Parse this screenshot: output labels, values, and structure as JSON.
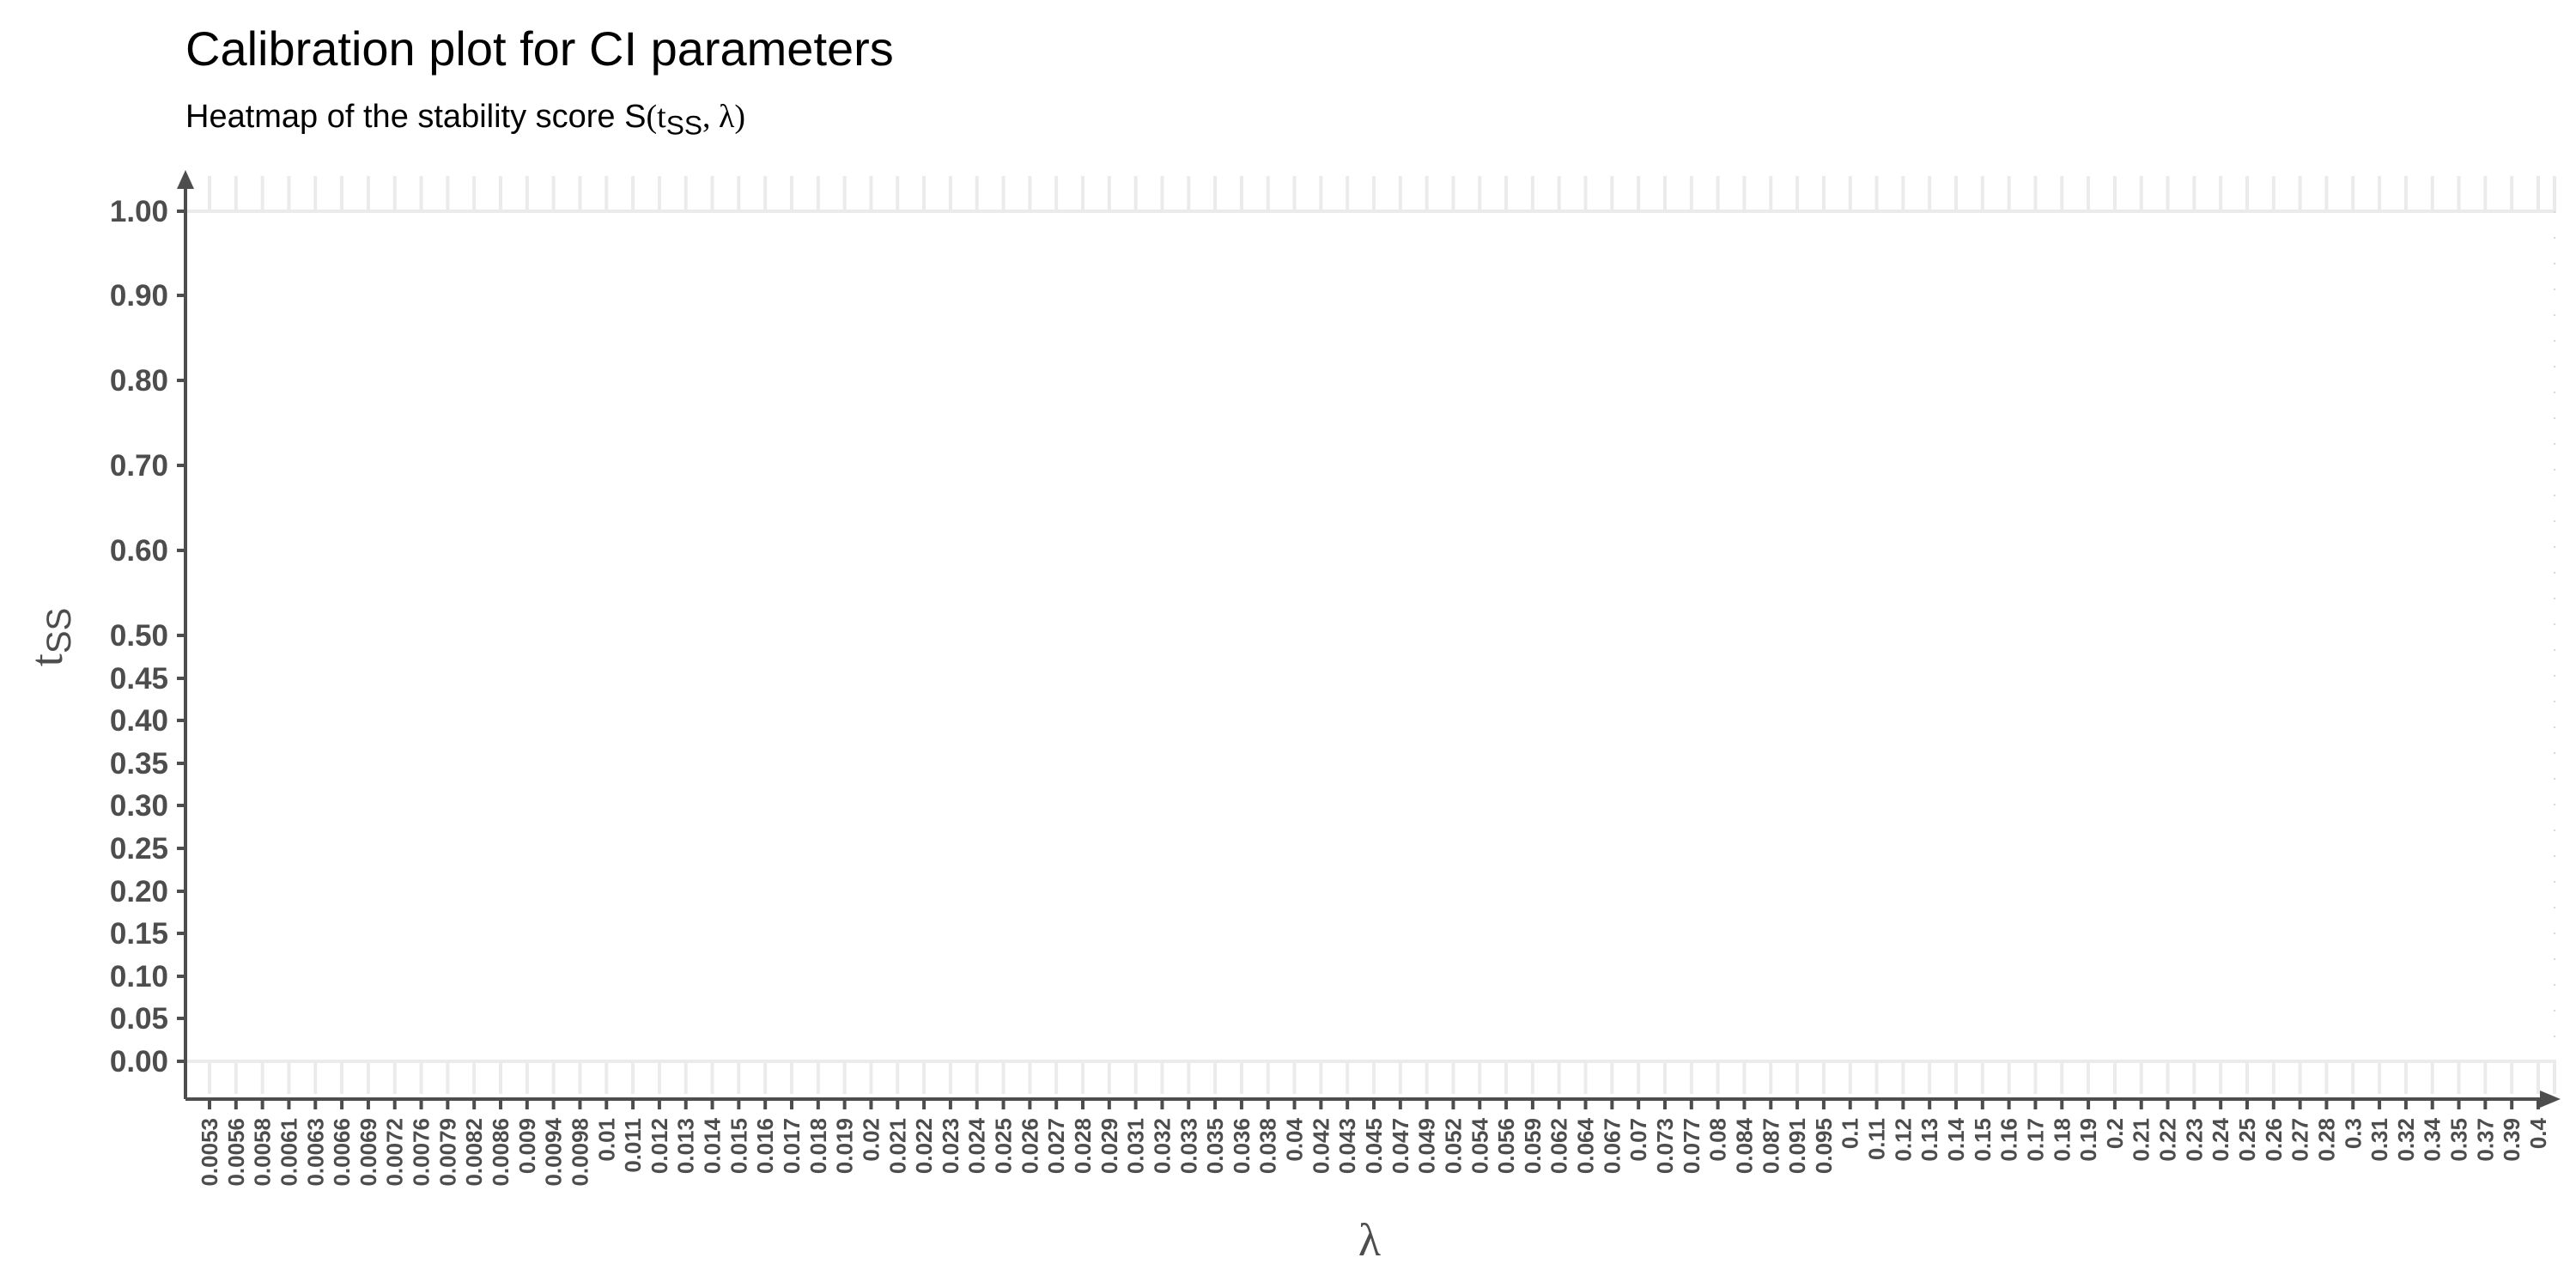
{
  "chart_data": {
    "type": "heatmap",
    "title": "Calibration plot for CI parameters",
    "subtitle": {
      "prefix": "Heatmap of the stability score S",
      "math": "(t",
      "sub": "SS",
      "suffix": ", λ)"
    },
    "xlabel": "λ",
    "ylabel": {
      "main": "t",
      "sub": "SS"
    },
    "x_categories": [
      "0.0053",
      "0.0056",
      "0.0058",
      "0.0061",
      "0.0063",
      "0.0066",
      "0.0069",
      "0.0072",
      "0.0076",
      "0.0079",
      "0.0082",
      "0.0086",
      "0.009",
      "0.0094",
      "0.0098",
      "0.01",
      "0.011",
      "0.012",
      "0.013",
      "0.014",
      "0.015",
      "0.016",
      "0.017",
      "0.018",
      "0.019",
      "0.02",
      "0.021",
      "0.022",
      "0.023",
      "0.024",
      "0.025",
      "0.026",
      "0.027",
      "0.028",
      "0.029",
      "0.031",
      "0.032",
      "0.033",
      "0.035",
      "0.036",
      "0.038",
      "0.04",
      "0.042",
      "0.043",
      "0.045",
      "0.047",
      "0.049",
      "0.052",
      "0.054",
      "0.056",
      "0.059",
      "0.062",
      "0.064",
      "0.067",
      "0.07",
      "0.073",
      "0.077",
      "0.08",
      "0.084",
      "0.087",
      "0.091",
      "0.095",
      "0.1",
      "0.11",
      "0.12",
      "0.13",
      "0.14",
      "0.15",
      "0.16",
      "0.17",
      "0.18",
      "0.19",
      "0.2",
      "0.21",
      "0.22",
      "0.23",
      "0.24",
      "0.25",
      "0.26",
      "0.27",
      "0.28",
      "0.3",
      "0.31",
      "0.32",
      "0.34",
      "0.35",
      "0.37",
      "0.39",
      "0.4"
    ],
    "y_ticks": [
      {
        "value": 0.0,
        "label": "0.00"
      },
      {
        "value": 0.05,
        "label": "0.05"
      },
      {
        "value": 0.1,
        "label": "0.10"
      },
      {
        "value": 0.15,
        "label": "0.15"
      },
      {
        "value": 0.2,
        "label": "0.20"
      },
      {
        "value": 0.25,
        "label": "0.25"
      },
      {
        "value": 0.3,
        "label": "0.30"
      },
      {
        "value": 0.35,
        "label": "0.35"
      },
      {
        "value": 0.4,
        "label": "0.40"
      },
      {
        "value": 0.45,
        "label": "0.45"
      },
      {
        "value": 0.5,
        "label": "0.50"
      },
      {
        "value": 0.6,
        "label": "0.60"
      },
      {
        "value": 0.7,
        "label": "0.70"
      },
      {
        "value": 0.8,
        "label": "0.80"
      },
      {
        "value": 0.9,
        "label": "0.90"
      },
      {
        "value": 1.0,
        "label": "1.00"
      }
    ],
    "values": [],
    "grid": "minimal",
    "colors": {
      "axis": "#4d4d4d",
      "grid": "#ebebeb",
      "tick_text": "#4d4d4d"
    }
  }
}
